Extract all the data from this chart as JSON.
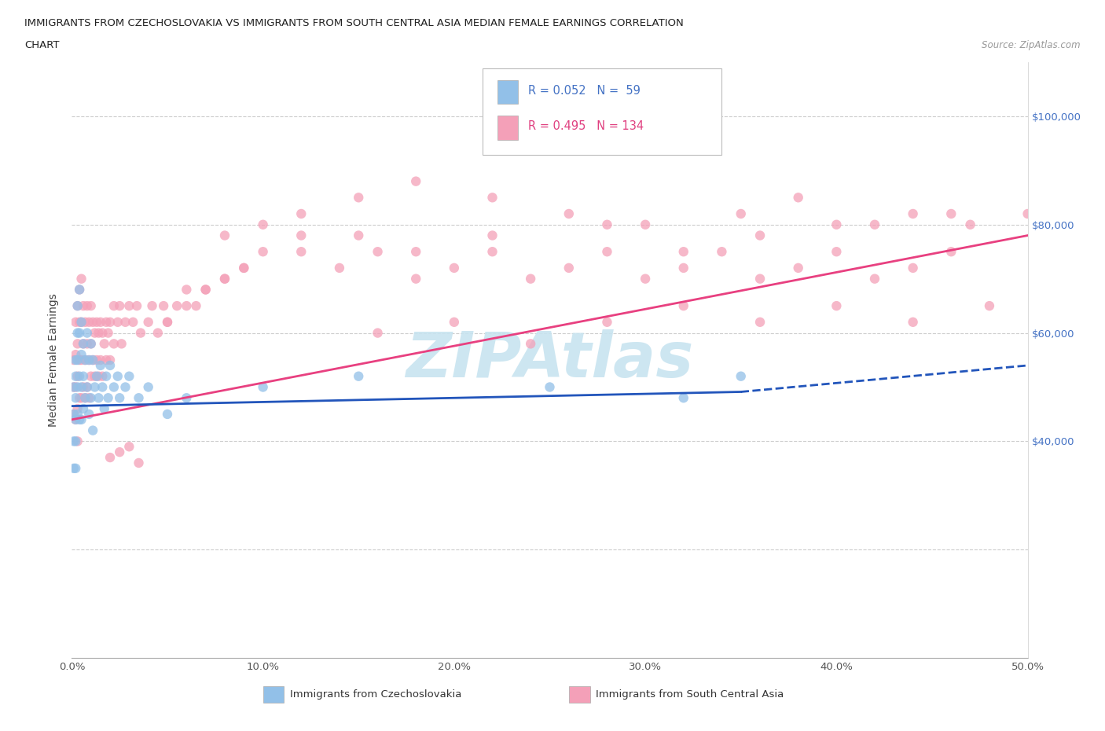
{
  "title_line1": "IMMIGRANTS FROM CZECHOSLOVAKIA VS IMMIGRANTS FROM SOUTH CENTRAL ASIA MEDIAN FEMALE EARNINGS CORRELATION",
  "title_line2": "CHART",
  "source": "Source: ZipAtlas.com",
  "ylabel": "Median Female Earnings",
  "xlim": [
    0.0,
    0.5
  ],
  "ylim": [
    0,
    110000
  ],
  "color_czech": "#92C0E8",
  "color_asia": "#F4A0B8",
  "line_color_czech": "#2255BB",
  "line_color_asia": "#E84080",
  "background_color": "#ffffff",
  "watermark_text": "ZIPAtlas",
  "watermark_color": "#C8E4F0",
  "czech_trendline_x": [
    0.0,
    0.5
  ],
  "czech_trendline_y": [
    46500,
    54000
  ],
  "asia_trendline_x": [
    0.0,
    0.5
  ],
  "asia_trendline_y": [
    44000,
    78000
  ],
  "czech_scatter_x": [
    0.001,
    0.001,
    0.001,
    0.001,
    0.002,
    0.002,
    0.002,
    0.002,
    0.002,
    0.002,
    0.003,
    0.003,
    0.003,
    0.003,
    0.003,
    0.004,
    0.004,
    0.004,
    0.004,
    0.005,
    0.005,
    0.005,
    0.005,
    0.006,
    0.006,
    0.006,
    0.007,
    0.007,
    0.008,
    0.008,
    0.009,
    0.009,
    0.01,
    0.01,
    0.011,
    0.011,
    0.012,
    0.013,
    0.014,
    0.015,
    0.016,
    0.017,
    0.018,
    0.019,
    0.02,
    0.022,
    0.024,
    0.025,
    0.028,
    0.03,
    0.035,
    0.04,
    0.05,
    0.06,
    0.1,
    0.15,
    0.25,
    0.32,
    0.35
  ],
  "czech_scatter_y": [
    50000,
    45000,
    40000,
    35000,
    55000,
    52000,
    48000,
    44000,
    40000,
    35000,
    65000,
    60000,
    55000,
    50000,
    45000,
    68000,
    60000,
    52000,
    44000,
    62000,
    56000,
    50000,
    44000,
    58000,
    52000,
    46000,
    55000,
    48000,
    60000,
    50000,
    55000,
    45000,
    58000,
    48000,
    55000,
    42000,
    50000,
    52000,
    48000,
    54000,
    50000,
    46000,
    52000,
    48000,
    54000,
    50000,
    52000,
    48000,
    50000,
    52000,
    48000,
    50000,
    45000,
    48000,
    50000,
    52000,
    50000,
    48000,
    52000
  ],
  "asia_scatter_x": [
    0.001,
    0.001,
    0.001,
    0.002,
    0.002,
    0.002,
    0.002,
    0.003,
    0.003,
    0.003,
    0.003,
    0.003,
    0.004,
    0.004,
    0.004,
    0.004,
    0.005,
    0.005,
    0.005,
    0.005,
    0.006,
    0.006,
    0.006,
    0.007,
    0.007,
    0.007,
    0.008,
    0.008,
    0.008,
    0.009,
    0.009,
    0.009,
    0.01,
    0.01,
    0.01,
    0.011,
    0.011,
    0.012,
    0.012,
    0.013,
    0.013,
    0.014,
    0.014,
    0.015,
    0.015,
    0.016,
    0.016,
    0.017,
    0.018,
    0.018,
    0.019,
    0.02,
    0.02,
    0.022,
    0.022,
    0.024,
    0.025,
    0.026,
    0.028,
    0.03,
    0.032,
    0.034,
    0.036,
    0.04,
    0.042,
    0.045,
    0.048,
    0.05,
    0.055,
    0.06,
    0.065,
    0.07,
    0.08,
    0.09,
    0.1,
    0.12,
    0.14,
    0.16,
    0.18,
    0.2,
    0.22,
    0.24,
    0.26,
    0.28,
    0.3,
    0.32,
    0.34,
    0.36,
    0.38,
    0.4,
    0.42,
    0.44,
    0.46,
    0.08,
    0.1,
    0.12,
    0.15,
    0.18,
    0.22,
    0.26,
    0.3,
    0.35,
    0.38,
    0.42,
    0.46,
    0.05,
    0.06,
    0.07,
    0.08,
    0.09,
    0.12,
    0.15,
    0.18,
    0.22,
    0.28,
    0.32,
    0.36,
    0.4,
    0.44,
    0.47,
    0.5,
    0.16,
    0.2,
    0.24,
    0.28,
    0.32,
    0.36,
    0.4,
    0.44,
    0.48,
    0.02,
    0.025,
    0.03,
    0.035
  ],
  "asia_scatter_y": [
    55000,
    50000,
    45000,
    62000,
    56000,
    50000,
    44000,
    65000,
    58000,
    52000,
    46000,
    40000,
    68000,
    62000,
    55000,
    48000,
    70000,
    62000,
    55000,
    48000,
    65000,
    58000,
    50000,
    62000,
    55000,
    48000,
    65000,
    58000,
    50000,
    62000,
    55000,
    48000,
    65000,
    58000,
    52000,
    62000,
    55000,
    60000,
    52000,
    62000,
    55000,
    60000,
    52000,
    62000,
    55000,
    60000,
    52000,
    58000,
    62000,
    55000,
    60000,
    62000,
    55000,
    65000,
    58000,
    62000,
    65000,
    58000,
    62000,
    65000,
    62000,
    65000,
    60000,
    62000,
    65000,
    60000,
    65000,
    62000,
    65000,
    68000,
    65000,
    68000,
    70000,
    72000,
    75000,
    78000,
    72000,
    75000,
    70000,
    72000,
    75000,
    70000,
    72000,
    75000,
    70000,
    72000,
    75000,
    70000,
    72000,
    75000,
    70000,
    72000,
    75000,
    78000,
    80000,
    82000,
    85000,
    88000,
    85000,
    82000,
    80000,
    82000,
    85000,
    80000,
    82000,
    62000,
    65000,
    68000,
    70000,
    72000,
    75000,
    78000,
    75000,
    78000,
    80000,
    75000,
    78000,
    80000,
    82000,
    80000,
    82000,
    60000,
    62000,
    58000,
    62000,
    65000,
    62000,
    65000,
    62000,
    65000,
    37000,
    38000,
    39000,
    36000
  ]
}
